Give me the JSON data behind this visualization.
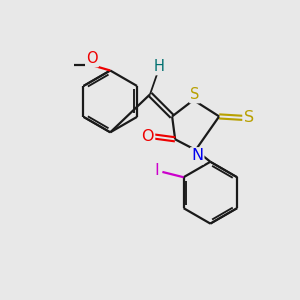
{
  "bg_color": "#e8e8e8",
  "bond_color": "#1a1a1a",
  "bond_width": 1.6,
  "atom_colors": {
    "S": "#b8a000",
    "N": "#0000ee",
    "O": "#ee0000",
    "I": "#cc00cc",
    "H": "#007070",
    "C": "#1a1a1a"
  },
  "font_size": 10.5
}
